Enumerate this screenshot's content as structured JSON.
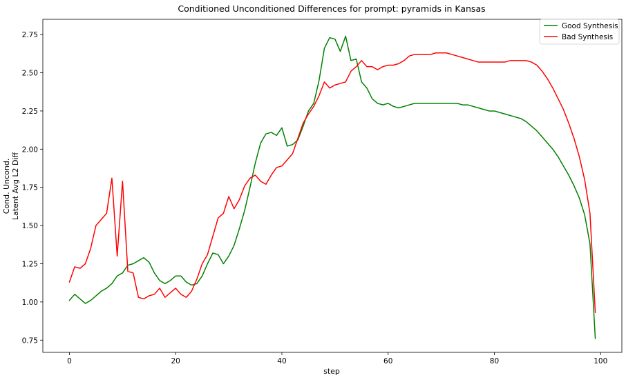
{
  "chart_data": {
    "type": "line",
    "title": "Conditioned Unconditioned Differences for prompt: pyramids in Kansas",
    "xlabel": "step",
    "ylabel_lines": [
      "Cond. Uncond.",
      "Latent Avg L2 Diff"
    ],
    "xlim": [
      -5,
      104
    ],
    "ylim": [
      0.67,
      2.85
    ],
    "xticks": [
      0,
      20,
      40,
      60,
      80,
      100
    ],
    "xtick_labels": [
      "0",
      "20",
      "40",
      "60",
      "80",
      "100"
    ],
    "yticks": [
      0.75,
      1.0,
      1.25,
      1.5,
      1.75,
      2.0,
      2.25,
      2.5,
      2.75
    ],
    "ytick_labels": [
      "0.75",
      "1.00",
      "1.25",
      "1.50",
      "1.75",
      "2.00",
      "2.25",
      "2.50",
      "2.75"
    ],
    "legend_position": "top-right",
    "series": [
      {
        "name": "Good Synthesis",
        "color": "#008000",
        "values": [
          1.01,
          1.05,
          1.02,
          0.99,
          1.01,
          1.04,
          1.07,
          1.09,
          1.12,
          1.17,
          1.19,
          1.24,
          1.25,
          1.27,
          1.29,
          1.26,
          1.19,
          1.14,
          1.12,
          1.14,
          1.17,
          1.17,
          1.13,
          1.11,
          1.12,
          1.17,
          1.25,
          1.32,
          1.31,
          1.25,
          1.3,
          1.37,
          1.48,
          1.6,
          1.75,
          1.91,
          2.04,
          2.1,
          2.11,
          2.09,
          2.14,
          2.02,
          2.03,
          2.06,
          2.15,
          2.25,
          2.3,
          2.45,
          2.66,
          2.73,
          2.72,
          2.64,
          2.74,
          2.58,
          2.59,
          2.44,
          2.4,
          2.33,
          2.3,
          2.29,
          2.3,
          2.28,
          2.27,
          2.28,
          2.29,
          2.3,
          2.3,
          2.3,
          2.3,
          2.3,
          2.3,
          2.3,
          2.3,
          2.3,
          2.29,
          2.29,
          2.28,
          2.27,
          2.26,
          2.25,
          2.25,
          2.24,
          2.23,
          2.22,
          2.21,
          2.2,
          2.18,
          2.15,
          2.12,
          2.08,
          2.04,
          2.0,
          1.95,
          1.89,
          1.83,
          1.76,
          1.68,
          1.57,
          1.38,
          0.76
        ]
      },
      {
        "name": "Bad Synthesis",
        "color": "#ff0000",
        "values": [
          1.13,
          1.23,
          1.22,
          1.25,
          1.35,
          1.5,
          1.54,
          1.58,
          1.81,
          1.3,
          1.79,
          1.2,
          1.19,
          1.03,
          1.02,
          1.04,
          1.05,
          1.09,
          1.03,
          1.06,
          1.09,
          1.05,
          1.03,
          1.07,
          1.15,
          1.25,
          1.31,
          1.43,
          1.55,
          1.58,
          1.69,
          1.61,
          1.67,
          1.76,
          1.81,
          1.83,
          1.79,
          1.77,
          1.83,
          1.88,
          1.89,
          1.93,
          1.97,
          2.07,
          2.17,
          2.23,
          2.28,
          2.35,
          2.44,
          2.4,
          2.42,
          2.43,
          2.44,
          2.51,
          2.54,
          2.58,
          2.54,
          2.54,
          2.52,
          2.54,
          2.55,
          2.55,
          2.56,
          2.58,
          2.61,
          2.62,
          2.62,
          2.62,
          2.62,
          2.63,
          2.63,
          2.63,
          2.62,
          2.61,
          2.6,
          2.59,
          2.58,
          2.57,
          2.57,
          2.57,
          2.57,
          2.57,
          2.57,
          2.58,
          2.58,
          2.58,
          2.58,
          2.57,
          2.55,
          2.51,
          2.46,
          2.4,
          2.33,
          2.26,
          2.17,
          2.07,
          1.95,
          1.8,
          1.58,
          0.93
        ]
      }
    ]
  }
}
